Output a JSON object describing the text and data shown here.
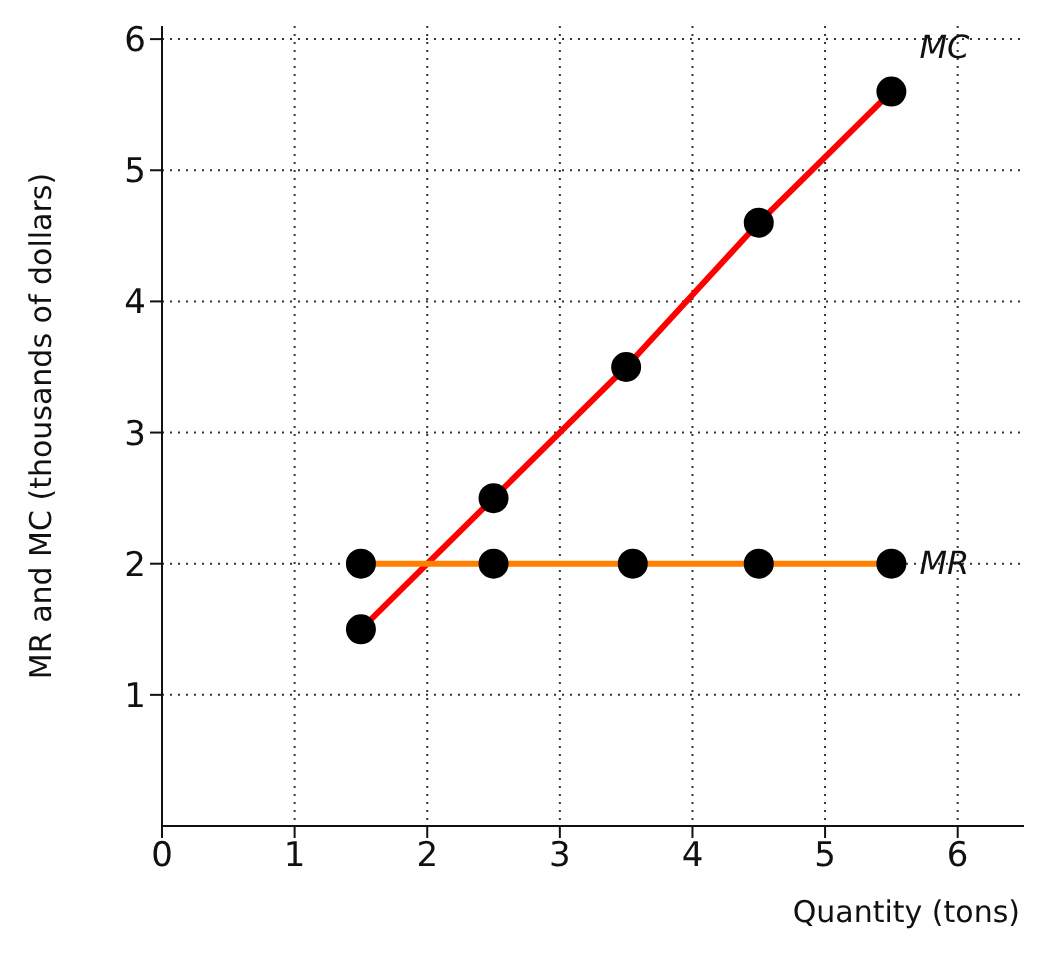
{
  "chart_data": {
    "type": "line",
    "xlabel": "Quantity (tons)",
    "ylabel": "MR and MC (thousands of dollars)",
    "series": [
      {
        "name": "MC",
        "color": "#ff0000",
        "x": [
          1.5,
          2.5,
          3.5,
          4.5,
          5.5
        ],
        "values": [
          1.5,
          2.5,
          3.5,
          4.6,
          5.6
        ]
      },
      {
        "name": "MR",
        "color": "#ff8000",
        "x": [
          1.5,
          2.5,
          3.55,
          4.5,
          5.5
        ],
        "values": [
          2,
          2,
          2,
          2,
          2
        ]
      }
    ],
    "xlim": [
      0,
      6.5
    ],
    "xticks": [
      0,
      1,
      2,
      3,
      4,
      5,
      6
    ],
    "ylim": [
      0,
      6.1
    ],
    "yticks": [
      1,
      2,
      3,
      4,
      5,
      6
    ],
    "grid": true,
    "legend": false,
    "marker": "circle",
    "line_style": "solid"
  }
}
